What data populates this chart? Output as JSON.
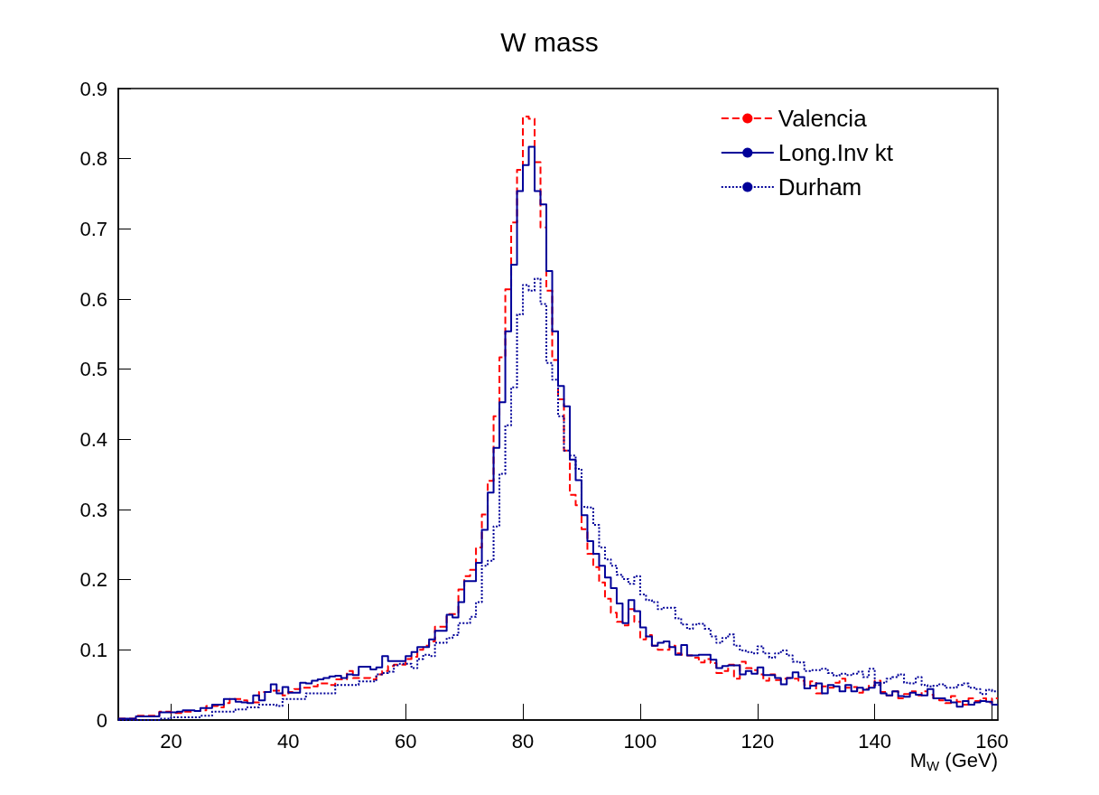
{
  "chart_data": {
    "type": "histogram",
    "title": "W mass",
    "xlabel": "M$_{W}$ (GeV)",
    "bins": [
      11,
      12,
      13,
      14,
      15,
      16,
      17,
      18,
      19,
      20,
      21,
      22,
      23,
      24,
      25,
      26,
      27,
      28,
      29,
      30,
      31,
      32,
      33,
      34,
      35,
      36,
      37,
      38,
      39,
      40,
      41,
      42,
      43,
      44,
      45,
      46,
      47,
      48,
      49,
      50,
      51,
      52,
      53,
      54,
      55,
      56,
      57,
      58,
      59,
      60,
      61,
      62,
      63,
      64,
      65,
      66,
      67,
      68,
      69,
      70,
      71,
      72,
      73,
      74,
      75,
      76,
      77,
      78,
      79,
      80,
      81,
      82,
      83,
      84,
      85,
      86,
      87,
      88,
      89,
      90,
      91,
      92,
      93,
      94,
      95,
      96,
      97,
      98,
      99,
      100,
      101,
      102,
      103,
      104,
      105,
      106,
      107,
      108,
      109,
      110,
      111,
      112,
      113,
      114,
      115,
      116,
      117,
      118,
      119,
      120,
      121,
      122,
      123,
      124,
      125,
      126,
      127,
      128,
      129,
      130,
      131,
      132,
      133,
      134,
      135,
      136,
      137,
      138,
      139,
      140,
      141,
      142,
      143,
      144,
      145,
      146,
      147,
      148,
      149,
      150,
      151,
      152,
      153,
      154,
      155,
      156,
      157,
      158,
      159,
      160,
      161
    ],
    "series": [
      {
        "name": "Valencia",
        "color": "#ff0000",
        "line_style": "dashed",
        "values": [
          0.002,
          0.002,
          0.002,
          0.006,
          0.006,
          0.006,
          0.006,
          0.012,
          0.012,
          0.01,
          0.01,
          0.012,
          0.012,
          0.013,
          0.014,
          0.02,
          0.02,
          0.018,
          0.024,
          0.03,
          0.03,
          0.028,
          0.025,
          0.025,
          0.04,
          0.04,
          0.042,
          0.042,
          0.035,
          0.04,
          0.044,
          0.046,
          0.046,
          0.048,
          0.052,
          0.052,
          0.05,
          0.058,
          0.058,
          0.07,
          0.06,
          0.06,
          0.06,
          0.058,
          0.065,
          0.07,
          0.077,
          0.079,
          0.079,
          0.087,
          0.09,
          0.1,
          0.106,
          0.112,
          0.133,
          0.133,
          0.151,
          0.151,
          0.186,
          0.205,
          0.214,
          0.246,
          0.293,
          0.341,
          0.433,
          0.517,
          0.614,
          0.709,
          0.784,
          0.86,
          0.857,
          0.795,
          0.702,
          0.612,
          0.513,
          0.457,
          0.384,
          0.321,
          0.306,
          0.272,
          0.237,
          0.218,
          0.196,
          0.173,
          0.153,
          0.14,
          0.135,
          0.158,
          0.14,
          0.115,
          0.121,
          0.106,
          0.1,
          0.1,
          0.106,
          0.095,
          0.093,
          0.092,
          0.089,
          0.082,
          0.087,
          0.081,
          0.067,
          0.07,
          0.079,
          0.059,
          0.083,
          0.074,
          0.071,
          0.065,
          0.056,
          0.065,
          0.057,
          0.059,
          0.06,
          0.059,
          0.056,
          0.05,
          0.055,
          0.038,
          0.048,
          0.046,
          0.053,
          0.059,
          0.046,
          0.047,
          0.039,
          0.044,
          0.049,
          0.056,
          0.04,
          0.035,
          0.041,
          0.031,
          0.037,
          0.041,
          0.035,
          0.041,
          0.036,
          0.031,
          0.028,
          0.024,
          0.034,
          0.026,
          0.022,
          0.031,
          0.027,
          0.031,
          0.025,
          0.031
        ]
      },
      {
        "name": "Long.Inv kt",
        "color": "#000099",
        "line_style": "solid",
        "values": [
          0.002,
          0.002,
          0.002,
          0.005,
          0.005,
          0.005,
          0.005,
          0.011,
          0.011,
          0.011,
          0.012,
          0.014,
          0.014,
          0.013,
          0.017,
          0.017,
          0.022,
          0.022,
          0.03,
          0.03,
          0.026,
          0.025,
          0.024,
          0.035,
          0.028,
          0.04,
          0.051,
          0.038,
          0.047,
          0.039,
          0.039,
          0.053,
          0.052,
          0.056,
          0.058,
          0.06,
          0.062,
          0.063,
          0.06,
          0.065,
          0.064,
          0.076,
          0.076,
          0.072,
          0.075,
          0.091,
          0.084,
          0.084,
          0.084,
          0.091,
          0.097,
          0.104,
          0.104,
          0.115,
          0.127,
          0.127,
          0.15,
          0.146,
          0.168,
          0.198,
          0.198,
          0.224,
          0.271,
          0.324,
          0.388,
          0.453,
          0.554,
          0.649,
          0.754,
          0.791,
          0.817,
          0.754,
          0.735,
          0.64,
          0.554,
          0.476,
          0.447,
          0.371,
          0.342,
          0.292,
          0.255,
          0.237,
          0.22,
          0.203,
          0.188,
          0.166,
          0.138,
          0.171,
          0.155,
          0.132,
          0.119,
          0.106,
          0.11,
          0.112,
          0.104,
          0.093,
          0.107,
          0.092,
          0.092,
          0.093,
          0.093,
          0.086,
          0.074,
          0.077,
          0.078,
          0.078,
          0.065,
          0.07,
          0.066,
          0.075,
          0.064,
          0.064,
          0.06,
          0.051,
          0.06,
          0.068,
          0.061,
          0.045,
          0.049,
          0.052,
          0.038,
          0.05,
          0.048,
          0.041,
          0.05,
          0.041,
          0.046,
          0.043,
          0.046,
          0.053,
          0.038,
          0.035,
          0.041,
          0.034,
          0.033,
          0.039,
          0.036,
          0.035,
          0.044,
          0.031,
          0.031,
          0.028,
          0.025,
          0.019,
          0.027,
          0.022,
          0.025,
          0.027,
          0.026,
          0.022
        ]
      },
      {
        "name": "Durham",
        "color": "#000099",
        "line_style": "dotted",
        "values": [
          0,
          0,
          0,
          0,
          0,
          0,
          0,
          0.002,
          0.002,
          0.004,
          0.004,
          0.004,
          0.004,
          0.004,
          0.006,
          0.006,
          0.012,
          0.012,
          0.012,
          0.012,
          0.015,
          0.015,
          0.018,
          0.018,
          0.022,
          0.022,
          0.022,
          0.02,
          0.03,
          0.03,
          0.03,
          0.03,
          0.038,
          0.038,
          0.038,
          0.038,
          0.038,
          0.05,
          0.05,
          0.05,
          0.05,
          0.055,
          0.055,
          0.055,
          0.065,
          0.067,
          0.069,
          0.078,
          0.08,
          0.08,
          0.074,
          0.087,
          0.093,
          0.091,
          0.11,
          0.11,
          0.117,
          0.121,
          0.138,
          0.138,
          0.147,
          0.168,
          0.22,
          0.227,
          0.276,
          0.351,
          0.42,
          0.474,
          0.578,
          0.62,
          0.612,
          0.629,
          0.593,
          0.509,
          0.485,
          0.433,
          0.384,
          0.377,
          0.358,
          0.304,
          0.303,
          0.278,
          0.246,
          0.229,
          0.22,
          0.207,
          0.201,
          0.194,
          0.205,
          0.179,
          0.171,
          0.168,
          0.158,
          0.16,
          0.16,
          0.145,
          0.136,
          0.13,
          0.136,
          0.137,
          0.13,
          0.119,
          0.11,
          0.117,
          0.122,
          0.106,
          0.099,
          0.097,
          0.095,
          0.105,
          0.095,
          0.089,
          0.095,
          0.099,
          0.092,
          0.083,
          0.082,
          0.07,
          0.071,
          0.071,
          0.073,
          0.067,
          0.063,
          0.066,
          0.064,
          0.066,
          0.069,
          0.061,
          0.073,
          0.05,
          0.053,
          0.059,
          0.061,
          0.065,
          0.053,
          0.052,
          0.061,
          0.05,
          0.048,
          0.049,
          0.051,
          0.046,
          0.046,
          0.05,
          0.052,
          0.046,
          0.044,
          0.037,
          0.043,
          0.041
        ]
      }
    ],
    "xlim": [
      11,
      161
    ],
    "xticks": [
      20,
      40,
      60,
      80,
      100,
      120,
      140,
      160
    ],
    "ylim": [
      0,
      0.9
    ],
    "yticks": [
      0,
      0.1,
      0.2,
      0.3,
      0.4,
      0.5,
      0.6,
      0.7,
      0.8,
      0.9
    ],
    "grid": false,
    "legend": "top right"
  }
}
